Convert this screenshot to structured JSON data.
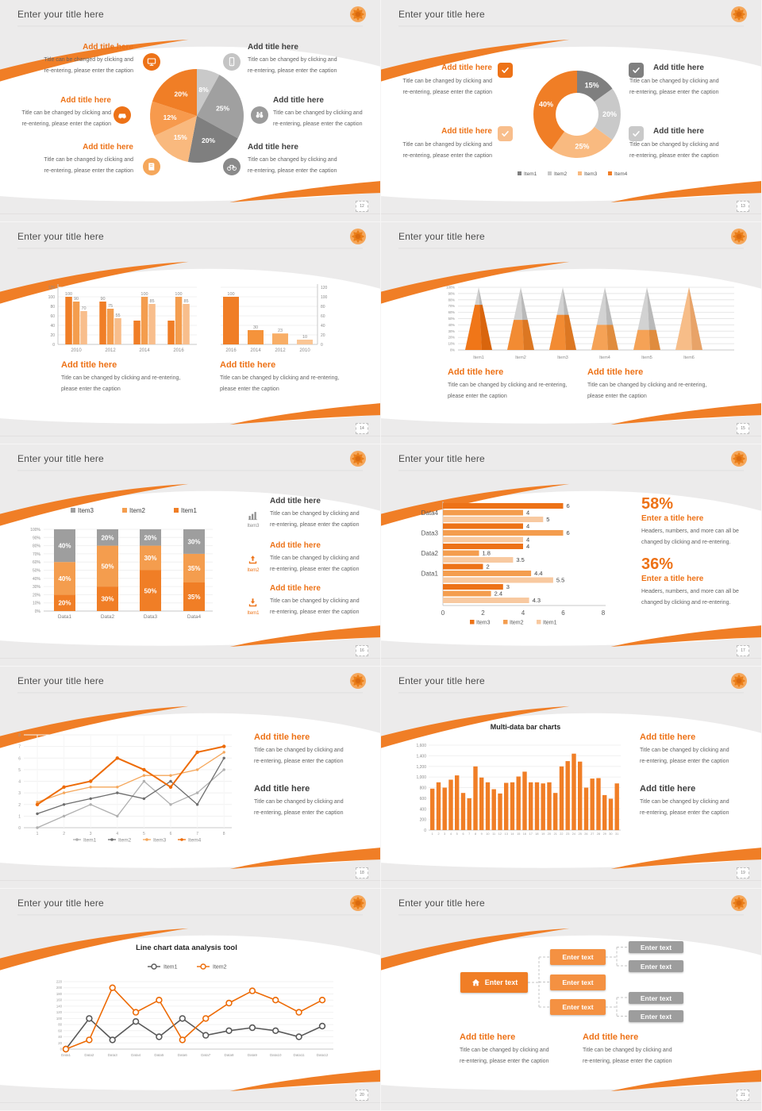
{
  "chrome": {
    "slide_title": "Enter your title here",
    "page_numbers": [
      "12",
      "13",
      "14",
      "15",
      "16",
      "17",
      "18",
      "19",
      "20",
      "21"
    ],
    "accent_color": "#F07E26"
  },
  "strings": {
    "add_title": "Add title here",
    "enter_a_title": "Enter a title here",
    "caption_line1": "Title can be changed by clicking and",
    "caption_line2": "re-entering, please enter the caption",
    "caption_wide1": "Title can be changed by clicking and re-entering,",
    "caption_wide2": "please enter the caption",
    "stat_caption1": "Headers, numbers, and more can all be",
    "stat_caption2": "changed by clicking and re-entering.",
    "stat1": "58%",
    "stat2": "36%",
    "enter_text": "Enter text"
  },
  "icons": {
    "slide12_left": [
      "monitor-icon",
      "car-icon",
      "book-icon"
    ],
    "slide12_right": [
      "phone-icon",
      "binoculars-icon",
      "bicycle-icon"
    ],
    "slide13": [
      "check-icon",
      "check-icon",
      "check-icon",
      "check-icon"
    ],
    "slide16": [
      "bar-chart-icon",
      "upload-icon",
      "download-icon"
    ],
    "slide16_icon_labels": [
      "Item3",
      "Item2",
      "Item1"
    ],
    "slide21": [
      "home-icon"
    ]
  },
  "chart_data": [
    {
      "id": "pie12",
      "type": "pie",
      "slices": [
        {
          "label": "8%",
          "value": 8,
          "color": "#C9C9C9"
        },
        {
          "label": "25%",
          "value": 25,
          "color": "#A0A0A0"
        },
        {
          "label": "20%",
          "value": 20,
          "color": "#7F7F7F"
        },
        {
          "label": "15%",
          "value": 15,
          "color": "#F9B97E"
        },
        {
          "label": "12%",
          "value": 12,
          "color": "#F79A4D"
        },
        {
          "label": "20%",
          "value": 20,
          "color": "#F07E26"
        }
      ]
    },
    {
      "id": "donut13",
      "type": "donut",
      "slices": [
        {
          "label": "15%",
          "value": 15,
          "color": "#7F7F7F"
        },
        {
          "label": "20%",
          "value": 20,
          "color": "#C9C9C9"
        },
        {
          "label": "25%",
          "value": 25,
          "color": "#F9BA80"
        },
        {
          "label": "40%",
          "value": 40,
          "color": "#F07E26"
        }
      ],
      "legend": [
        {
          "label": "Item1",
          "color": "#7F7F7F"
        },
        {
          "label": "Item2",
          "color": "#C9C9C9"
        },
        {
          "label": "Item3",
          "color": "#F9BA80"
        },
        {
          "label": "Item4",
          "color": "#F07E26"
        }
      ]
    },
    {
      "id": "bars14a",
      "type": "bar",
      "categories": [
        "2010",
        "2012",
        "2014",
        "2016"
      ],
      "series": [
        {
          "name": "series1",
          "color": "#F07E26",
          "values": [
            100,
            90,
            50,
            50
          ]
        },
        {
          "name": "series2",
          "color": "#F49D4E",
          "values": [
            90,
            75,
            100,
            100
          ]
        },
        {
          "name": "series3",
          "color": "#F8BE8C",
          "values": [
            70,
            55,
            85,
            85
          ]
        }
      ],
      "labels": [
        [
          "100",
          "90",
          "70"
        ],
        [
          "90",
          "75",
          "55"
        ],
        [
          null,
          "100",
          "85"
        ],
        [
          null,
          "100",
          "85"
        ]
      ],
      "ylim": [
        0,
        120
      ],
      "yticks": [
        0,
        20,
        40,
        60,
        80,
        100,
        120
      ]
    },
    {
      "id": "bars14b",
      "type": "bar",
      "categories": [
        "2016",
        "2014",
        "2012",
        "2010"
      ],
      "values": [
        100,
        30,
        23,
        10
      ],
      "labels": [
        "100",
        "30",
        "23",
        "10"
      ],
      "colors": [
        "#F07E26",
        "#F5933B",
        "#F8AE66",
        "#FAC695"
      ],
      "ylim": [
        0,
        120
      ],
      "yticks": [
        0,
        20,
        40,
        60,
        80,
        100,
        120
      ]
    },
    {
      "id": "pyramid15",
      "type": "pyramid",
      "categories": [
        "Item1",
        "Item2",
        "Item3",
        "Item4",
        "Item5",
        "Item6"
      ],
      "fill_pct": [
        72,
        48,
        56,
        40,
        32,
        100
      ],
      "front_colors": [
        "#F07618",
        "#F28B33",
        "#F28B33",
        "#F5A256",
        "#F5A256",
        "#F7BD88"
      ],
      "side_colors": [
        "#D9650D",
        "#DC7722",
        "#DC7722",
        "#E08C3E",
        "#E08C3E",
        "#E8A368"
      ],
      "top_front": "#D2D2D2",
      "top_side": "#B9B9B9",
      "yticks": [
        "0%",
        "10%",
        "20%",
        "30%",
        "40%",
        "50%",
        "60%",
        "70%",
        "80%",
        "90%",
        "100%"
      ]
    },
    {
      "id": "stacked16",
      "type": "stacked_bar",
      "categories": [
        "Data1",
        "Data2",
        "Data3",
        "Data4"
      ],
      "series": [
        {
          "name": "Item1",
          "color": "#F07E26",
          "values": [
            20,
            30,
            50,
            35
          ]
        },
        {
          "name": "Item2",
          "color": "#F49D4E",
          "values": [
            40,
            50,
            30,
            35
          ]
        },
        {
          "name": "Item3",
          "color": "#9E9E9E",
          "values": [
            40,
            20,
            20,
            30
          ]
        }
      ],
      "legend": [
        {
          "label": "Item3",
          "color": "#9E9E9E"
        },
        {
          "label": "Item2",
          "color": "#F49D4E"
        },
        {
          "label": "Item1",
          "color": "#F07E26"
        }
      ],
      "yticks": [
        "0%",
        "10%",
        "20%",
        "30%",
        "40%",
        "50%",
        "60%",
        "70%",
        "80%",
        "90%",
        "100%"
      ]
    },
    {
      "id": "hbar17",
      "type": "hbar",
      "groups": [
        "Data4",
        "Data3",
        "Data2",
        "Data1",
        ""
      ],
      "values": [
        [
          6,
          4,
          5
        ],
        [
          4,
          6,
          4
        ],
        [
          4,
          1.8,
          3.5
        ],
        [
          2,
          4.4,
          5.5
        ],
        [
          3,
          2.4,
          4.3
        ]
      ],
      "legend": [
        {
          "label": "Item3",
          "color": "#ED7217"
        },
        {
          "label": "Item2",
          "color": "#F49D4E"
        },
        {
          "label": "Item1",
          "color": "#F8C9A0"
        }
      ],
      "xticks": [
        0,
        2,
        4,
        6,
        8
      ],
      "xlim": [
        0,
        8
      ]
    },
    {
      "id": "line18",
      "type": "line",
      "x": [
        1,
        2,
        3,
        4,
        5,
        6,
        7,
        8
      ],
      "series": [
        {
          "name": "Item1",
          "color": "#B0B0B0",
          "values": [
            0,
            1,
            2,
            1,
            4,
            2,
            3,
            5
          ]
        },
        {
          "name": "Item2",
          "color": "#6E6E6E",
          "values": [
            1.2,
            2,
            2.5,
            3,
            2.5,
            4,
            2,
            6
          ]
        },
        {
          "name": "Item3",
          "color": "#F5A75B",
          "values": [
            2.2,
            3,
            3.5,
            3.5,
            4.5,
            4.5,
            5,
            6.5
          ]
        },
        {
          "name": "Item4",
          "color": "#ED6B06",
          "values": [
            2,
            3.5,
            4,
            6,
            5,
            3.5,
            6.5,
            7
          ]
        }
      ],
      "ylim": [
        0,
        8
      ],
      "yticks": [
        0,
        1,
        2,
        3,
        4,
        5,
        6,
        7,
        8
      ]
    },
    {
      "id": "bars19",
      "type": "bar",
      "title": "Multi-data bar charts",
      "color": "#F07E26",
      "values": [
        780,
        900,
        800,
        950,
        1030,
        700,
        600,
        1200,
        990,
        900,
        770,
        690,
        890,
        900,
        1010,
        1100,
        900,
        900,
        880,
        900,
        700,
        1200,
        1300,
        1440,
        1290,
        800,
        970,
        980,
        660,
        590,
        880
      ],
      "x_labels": [
        "1",
        "2",
        "3",
        "4",
        "5",
        "6",
        "7",
        "8",
        "9",
        "10",
        "11",
        "12",
        "13",
        "14",
        "15",
        "16",
        "17",
        "18",
        "19",
        "20",
        "21",
        "22",
        "23",
        "24",
        "25",
        "26",
        "27",
        "28",
        "29",
        "30",
        "31"
      ],
      "ytick_values": [
        0,
        200,
        400,
        600,
        800,
        1000,
        1200,
        1400,
        1600
      ],
      "ytick_labels": [
        "0",
        "200",
        "400",
        "600",
        "800",
        "1,000",
        "1,200",
        "1,400",
        "1,600"
      ],
      "ylim": [
        0,
        1600
      ]
    },
    {
      "id": "line20",
      "type": "line",
      "title": "Line chart data analysis tool",
      "categories": [
        "Data1",
        "Data2",
        "Data3",
        "Data4",
        "Data5",
        "Data6",
        "Data7",
        "Data8",
        "Data9",
        "Data10",
        "Data11",
        "Data12"
      ],
      "series": [
        {
          "name": "Item1",
          "color": "#595959",
          "values": [
            0,
            100,
            30,
            90,
            40,
            100,
            45,
            60,
            70,
            60,
            40,
            75
          ]
        },
        {
          "name": "Item2",
          "color": "#ED6B06",
          "values": [
            0,
            30,
            200,
            120,
            160,
            30,
            100,
            150,
            190,
            160,
            120,
            160
          ]
        }
      ],
      "ylim": [
        0,
        220
      ],
      "ytick_values": [
        0,
        20,
        40,
        60,
        80,
        100,
        120,
        140,
        160,
        180,
        200,
        220
      ],
      "ytick_labels": [
        "0",
        "20",
        "40",
        "60",
        "80",
        "100",
        "120",
        "140",
        "160",
        "180",
        "200",
        "220"
      ]
    }
  ]
}
